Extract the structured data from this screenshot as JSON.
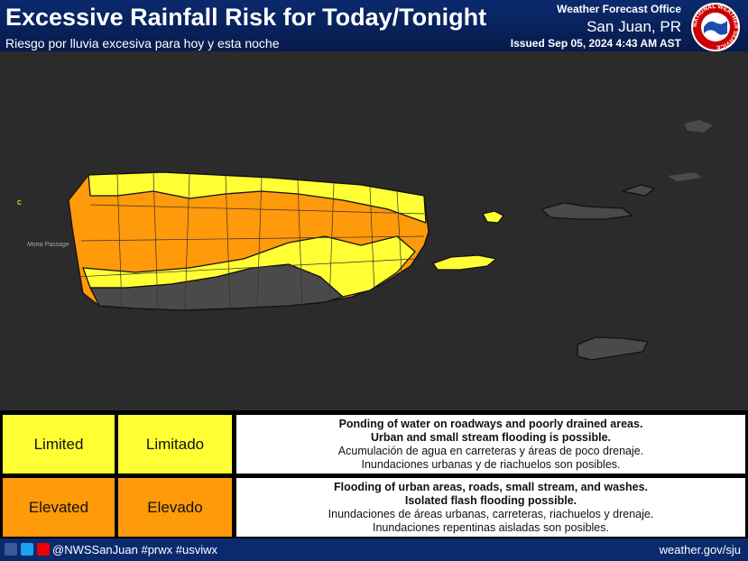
{
  "header": {
    "title": "Excessive Rainfall Risk for Today/Tonight",
    "subtitle": "Riesgo por lluvia excesiva para hoy y esta noche",
    "office": "Weather Forecast Office",
    "city": "San Juan, PR",
    "issued": "Issued Sep 05, 2024 4:43 AM AST",
    "logo_text": "NATIONAL WEATHER SERVICE"
  },
  "map": {
    "mona_passage": "Mona Passage"
  },
  "legend": [
    {
      "level_en": "Limited",
      "level_es": "Limitado",
      "desc_en": [
        "Ponding of water on roadways and poorly drained areas.",
        "Urban and small stream flooding is possible."
      ],
      "desc_es": [
        "Acumulación de agua en carreteras y áreas de poco drenaje.",
        "Inundaciones urbanas y de riachuelos son posibles."
      ]
    },
    {
      "level_en": "Elevated",
      "level_es": "Elevado",
      "desc_en": [
        "Flooding of urban areas, roads, small stream, and washes.",
        "Isolated flash flooding possible."
      ],
      "desc_es": [
        "Inundaciones de áreas urbanas, carreteras, riachuelos y drenaje.",
        "Inundaciones repentinas aisladas son posibles."
      ]
    }
  ],
  "footer": {
    "social": "@NWSSanJuan #prwx #usviwx",
    "website": "weather.gov/sju"
  }
}
